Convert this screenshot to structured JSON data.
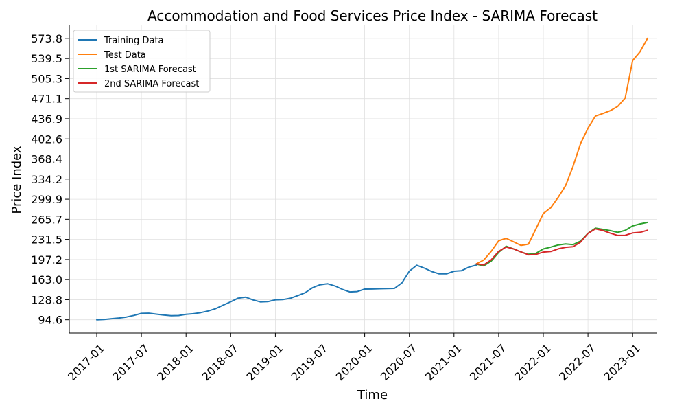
{
  "chart_data": {
    "type": "line",
    "title": "Accommodation and Food Services Price Index - SARIMA Forecast",
    "xlabel": "Time",
    "ylabel": "Price Index",
    "x_ticks": [
      "2017-01",
      "2017-07",
      "2018-01",
      "2018-07",
      "2019-01",
      "2019-07",
      "2020-01",
      "2020-07",
      "2021-01",
      "2021-07",
      "2022-01",
      "2022-07",
      "2023-01"
    ],
    "y_ticks": [
      "94.6",
      "128.8",
      "163.0",
      "197.2",
      "231.5",
      "265.7",
      "299.9",
      "334.2",
      "368.4",
      "402.6",
      "436.9",
      "471.1",
      "505.3",
      "539.5",
      "573.8"
    ],
    "ylim": [
      72,
      597
    ],
    "grid": true,
    "legend_position": "top-left",
    "series": [
      {
        "name": "Training Data",
        "color": "#1f77b4",
        "x": [
          "2017-01",
          "2017-02",
          "2017-03",
          "2017-04",
          "2017-05",
          "2017-06",
          "2017-07",
          "2017-08",
          "2017-09",
          "2017-10",
          "2017-11",
          "2017-12",
          "2018-01",
          "2018-02",
          "2018-03",
          "2018-04",
          "2018-05",
          "2018-06",
          "2018-07",
          "2018-08",
          "2018-09",
          "2018-10",
          "2018-11",
          "2018-12",
          "2019-01",
          "2019-02",
          "2019-03",
          "2019-04",
          "2019-05",
          "2019-06",
          "2019-07",
          "2019-08",
          "2019-09",
          "2019-10",
          "2019-11",
          "2019-12",
          "2020-01",
          "2020-02",
          "2020-03",
          "2020-04",
          "2020-05",
          "2020-06",
          "2020-07",
          "2020-08",
          "2020-09",
          "2020-10",
          "2020-11",
          "2020-12",
          "2021-01",
          "2021-02",
          "2021-03",
          "2021-04"
        ],
        "values": [
          94.6,
          95.2,
          96.4,
          97.6,
          99.2,
          102,
          105.4,
          105.8,
          104.2,
          102.6,
          101.6,
          101.8,
          103.8,
          104.8,
          106.8,
          109.6,
          113.6,
          119.6,
          125.2,
          131.4,
          133.2,
          128.4,
          125,
          125.4,
          128.6,
          129,
          131.2,
          135.6,
          140.6,
          149.2,
          154.2,
          156,
          152.2,
          146.4,
          142,
          142.6,
          146.8,
          147,
          147.4,
          147.8,
          148,
          157.2,
          177.4,
          187.4,
          182.6,
          176.8,
          172.8,
          172.8,
          177.2,
          178,
          184.2,
          187.8
        ]
      },
      {
        "name": "Test Data",
        "color": "#ff7f0e",
        "x": [
          "2021-04",
          "2021-05",
          "2021-06",
          "2021-07",
          "2021-08",
          "2021-09",
          "2021-10",
          "2021-11",
          "2021-12",
          "2022-01",
          "2022-02",
          "2022-03",
          "2022-04",
          "2022-05",
          "2022-06",
          "2022-07",
          "2022-08",
          "2022-09",
          "2022-10",
          "2022-11",
          "2022-12",
          "2023-01",
          "2023-02",
          "2023-03"
        ],
        "values": [
          189.8,
          196.4,
          211,
          229,
          233.4,
          227.4,
          221.2,
          223.4,
          249,
          275.6,
          285.4,
          303.2,
          323,
          356,
          394.6,
          420.8,
          441.4,
          445.8,
          450.6,
          457.8,
          472.4,
          536,
          551,
          573.8
        ]
      },
      {
        "name": "1st SARIMA Forecast",
        "color": "#2ca02c",
        "x": [
          "2021-04",
          "2021-05",
          "2021-06",
          "2021-07",
          "2021-08",
          "2021-09",
          "2021-10",
          "2021-11",
          "2021-12",
          "2022-01",
          "2022-02",
          "2022-03",
          "2022-04",
          "2022-05",
          "2022-06",
          "2022-07",
          "2022-08",
          "2022-09",
          "2022-10",
          "2022-11",
          "2022-12",
          "2023-01",
          "2023-02",
          "2023-03"
        ],
        "values": [
          189.4,
          186.4,
          194.4,
          209.4,
          219.8,
          215.4,
          210,
          206.2,
          207.6,
          215.2,
          218.4,
          222,
          223.8,
          222.6,
          228.6,
          241.8,
          250.6,
          248.6,
          246.4,
          243.4,
          246.8,
          254.4,
          257.8,
          260.4
        ]
      },
      {
        "name": "2nd SARIMA Forecast",
        "color": "#d62728",
        "x": [
          "2021-04",
          "2021-05",
          "2021-06",
          "2021-07",
          "2021-08",
          "2021-09",
          "2021-10",
          "2021-11",
          "2021-12",
          "2022-01",
          "2022-02",
          "2022-03",
          "2022-04",
          "2022-05",
          "2022-06",
          "2022-07",
          "2022-08",
          "2022-09",
          "2022-10",
          "2022-11",
          "2022-12",
          "2023-01",
          "2023-02",
          "2023-03"
        ],
        "values": [
          189.6,
          188,
          196.6,
          211,
          218.6,
          215.2,
          210.2,
          205.2,
          205.8,
          209.8,
          210.8,
          215.4,
          218,
          219,
          226.8,
          241.6,
          249.4,
          246.6,
          242,
          238.2,
          238.4,
          242.4,
          243.4,
          247
        ]
      }
    ]
  }
}
